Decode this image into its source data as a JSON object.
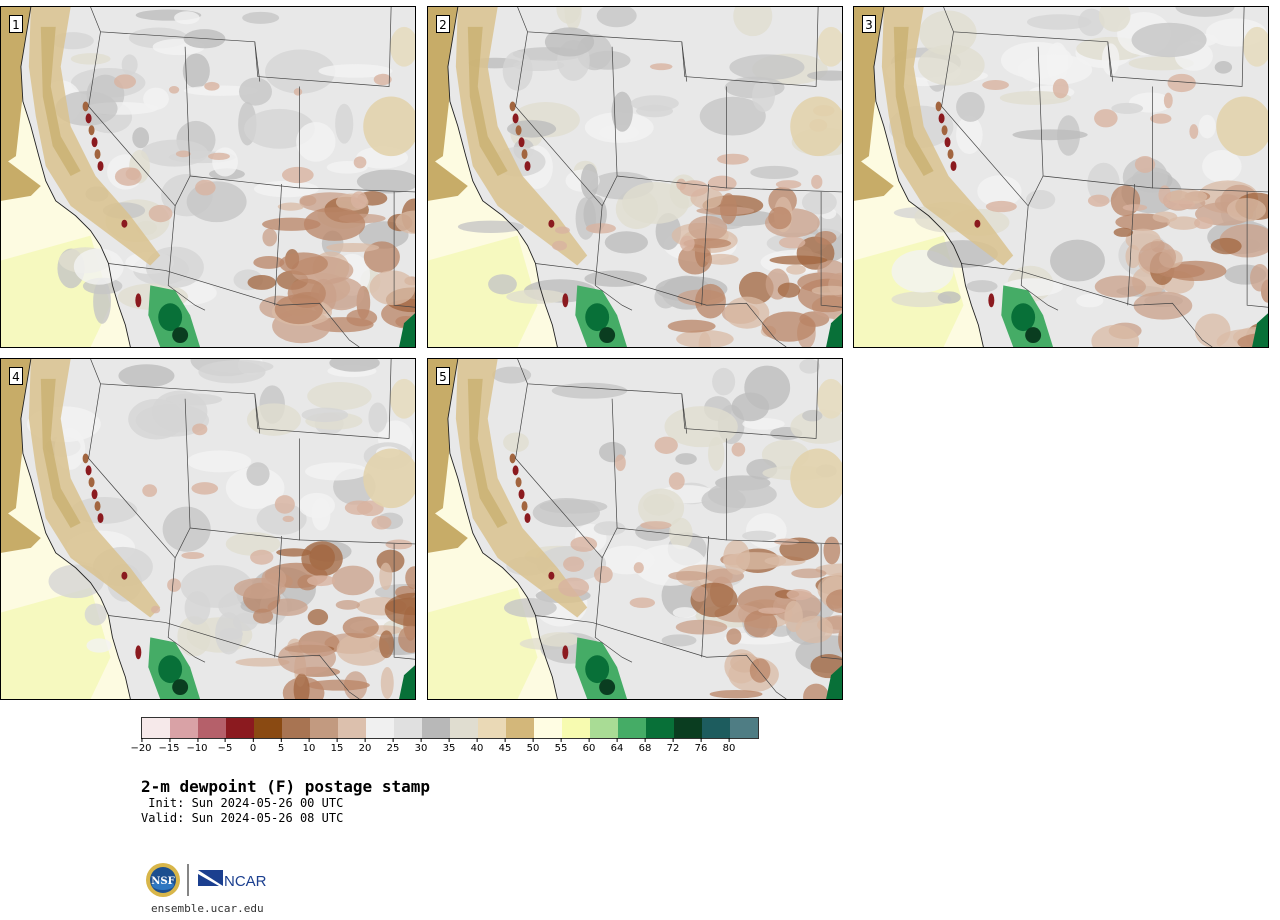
{
  "panels": [
    {
      "label": "1"
    },
    {
      "label": "2"
    },
    {
      "label": "3"
    },
    {
      "label": "4"
    },
    {
      "label": "5"
    }
  ],
  "colorbar": {
    "colors": [
      "#f6e9ea",
      "#d9a2a6",
      "#b5606a",
      "#8b1a1f",
      "#8a4a12",
      "#a87452",
      "#c29a80",
      "#dcc0ad",
      "#f0f0f0",
      "#e0e0e0",
      "#b8b8b8",
      "#e0ddd0",
      "#ead9b6",
      "#d3b77a",
      "#fffde3",
      "#f7fbb0",
      "#a9dc95",
      "#45ac66",
      "#087038",
      "#0a3d20",
      "#1d5c5e",
      "#4f7d84"
    ],
    "ticks": [
      "−20",
      "−15",
      "−10",
      "−5",
      "0",
      "5",
      "10",
      "15",
      "20",
      "25",
      "30",
      "35",
      "40",
      "45",
      "50",
      "55",
      "60",
      "64",
      "68",
      "72",
      "76",
      "80"
    ]
  },
  "title": "2-m dewpoint (F) postage stamp",
  "init": " Init: Sun 2024-05-26 00 UTC",
  "valid": "Valid: Sun 2024-05-26 08 UTC",
  "logo": {
    "nsf": "NSF",
    "ncar": "NCAR"
  },
  "url": "ensemble.ucar.edu"
}
